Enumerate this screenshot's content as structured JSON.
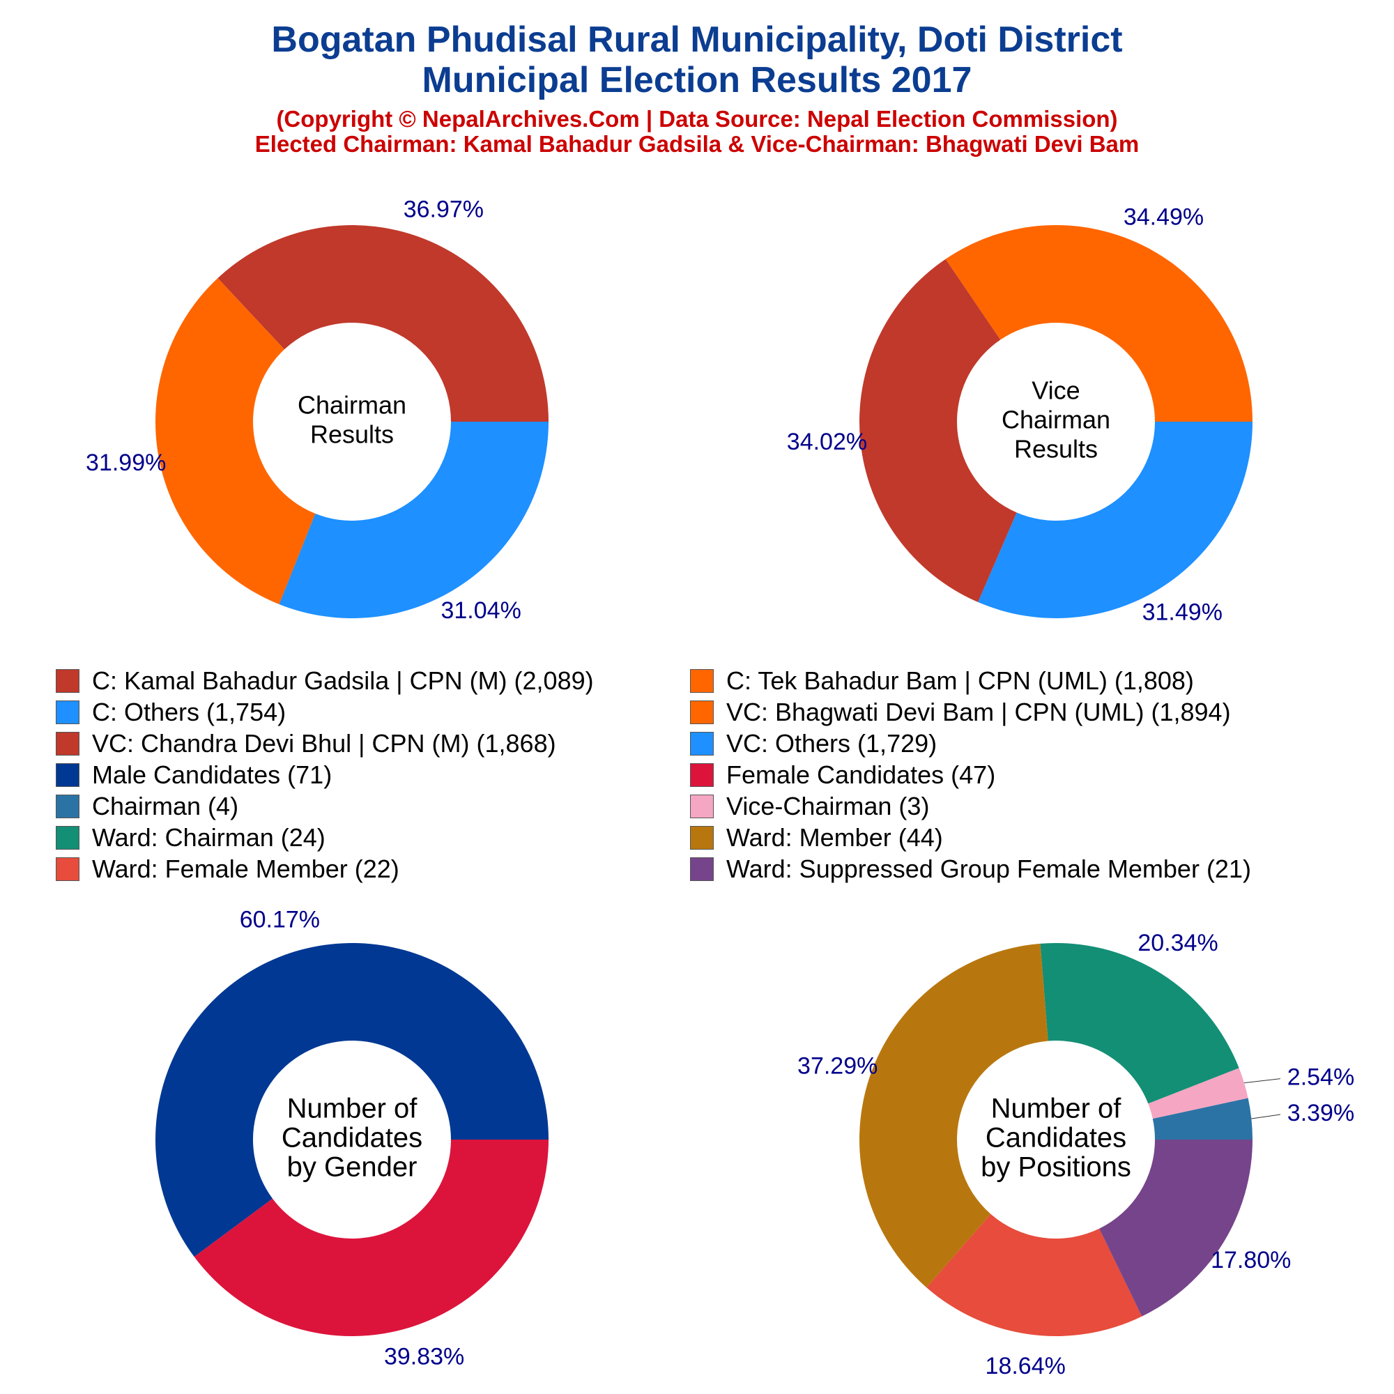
{
  "header": {
    "title_line1": "Bogatan Phudisal Rural Municipality, Doti District",
    "title_line2": "Municipal Election Results 2017",
    "subtitle_line1": "(Copyright © NepalArchives.Com | Data Source: Nepal Election Commission)",
    "subtitle_line2": "Elected Chairman: Kamal Bahadur Gadsila & Vice-Chairman: Bhagwati Devi Bam"
  },
  "colors": {
    "title": "#0b3d91",
    "subtitle": "#cc0000",
    "percent_label": "#00008b"
  },
  "legend": [
    {
      "label": "C: Kamal Bahadur Gadsila | CPN (M) (2,089)",
      "color": "#c0392b"
    },
    {
      "label": "C: Tek Bahadur Bam | CPN (UML) (1,808)",
      "color": "#ff6600"
    },
    {
      "label": "C: Others (1,754)",
      "color": "#1e90ff"
    },
    {
      "label": "VC: Bhagwati Devi Bam | CPN (UML) (1,894)",
      "color": "#ff6600"
    },
    {
      "label": "VC: Chandra Devi Bhul | CPN (M) (1,868)",
      "color": "#c0392b"
    },
    {
      "label": "VC: Others (1,729)",
      "color": "#1e90ff"
    },
    {
      "label": "Male Candidates (71)",
      "color": "#003893"
    },
    {
      "label": "Female Candidates (47)",
      "color": "#dc143c"
    },
    {
      "label": "Chairman (4)",
      "color": "#2c73a5"
    },
    {
      "label": "Vice-Chairman (3)",
      "color": "#f4a6c3"
    },
    {
      "label": "Ward: Chairman (24)",
      "color": "#138f75"
    },
    {
      "label": "Ward: Member (44)",
      "color": "#b8770e"
    },
    {
      "label": "Ward: Female Member (22)",
      "color": "#e74c3c"
    },
    {
      "label": "Ward: Suppressed Group Female Member (21)",
      "color": "#76448a"
    }
  ],
  "chart_data": [
    {
      "type": "pie",
      "style": "donut",
      "center_label": [
        "Chairman",
        "Results"
      ],
      "slices": [
        {
          "name": "C: Kamal Bahadur Gadsila | CPN (M)",
          "value": 2089,
          "percent_label": "36.97%",
          "color": "#c0392b"
        },
        {
          "name": "C: Tek Bahadur Bam | CPN (UML)",
          "value": 1808,
          "percent_label": "31.99%",
          "color": "#ff6600"
        },
        {
          "name": "C: Others",
          "value": 1754,
          "percent_label": "31.04%",
          "color": "#1e90ff"
        }
      ]
    },
    {
      "type": "pie",
      "style": "donut",
      "center_label": [
        "Vice",
        "Chairman",
        "Results"
      ],
      "slices": [
        {
          "name": "VC: Bhagwati Devi Bam | CPN (UML)",
          "value": 1894,
          "percent_label": "34.49%",
          "color": "#ff6600"
        },
        {
          "name": "VC: Chandra Devi Bhul | CPN (M)",
          "value": 1868,
          "percent_label": "34.02%",
          "color": "#c0392b"
        },
        {
          "name": "VC: Others",
          "value": 1729,
          "percent_label": "31.49%",
          "color": "#1e90ff"
        }
      ]
    },
    {
      "type": "pie",
      "style": "donut",
      "center_label": [
        "Number of",
        "Candidates",
        "by Gender"
      ],
      "slices": [
        {
          "name": "Male Candidates",
          "value": 71,
          "percent_label": "60.17%",
          "color": "#003893"
        },
        {
          "name": "Female Candidates",
          "value": 47,
          "percent_label": "39.83%",
          "color": "#dc143c"
        }
      ]
    },
    {
      "type": "pie",
      "style": "donut",
      "center_label": [
        "Number of",
        "Candidates",
        "by Positions"
      ],
      "slices": [
        {
          "name": "Chairman",
          "value": 4,
          "percent_label": "3.39%",
          "color": "#2c73a5"
        },
        {
          "name": "Vice-Chairman",
          "value": 3,
          "percent_label": "2.54%",
          "color": "#f4a6c3"
        },
        {
          "name": "Ward: Chairman",
          "value": 24,
          "percent_label": "20.34%",
          "color": "#138f75"
        },
        {
          "name": "Ward: Member",
          "value": 44,
          "percent_label": "37.29%",
          "color": "#b8770e"
        },
        {
          "name": "Ward: Female Member",
          "value": 22,
          "percent_label": "18.64%",
          "color": "#e74c3c"
        },
        {
          "name": "Ward: Suppressed Group Female Member",
          "value": 21,
          "percent_label": "17.80%",
          "color": "#76448a"
        }
      ]
    }
  ]
}
